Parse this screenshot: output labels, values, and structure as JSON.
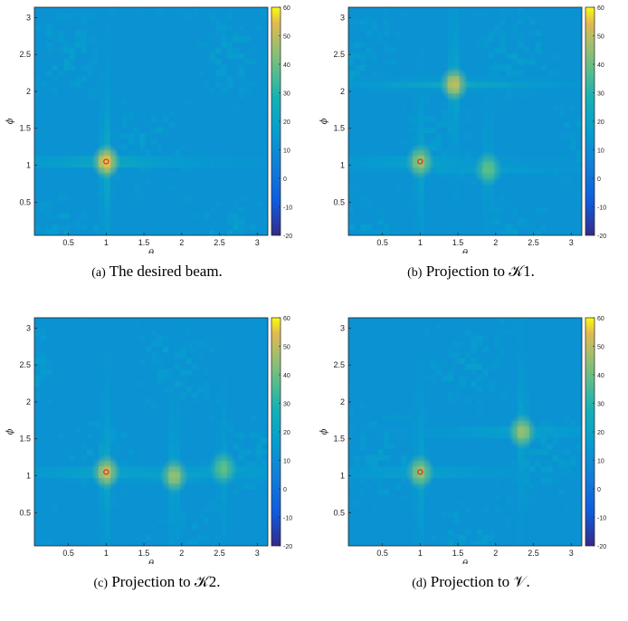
{
  "chart_data": [
    {
      "id": "a",
      "type": "heatmap",
      "caption_label": "(a)",
      "caption_text": "The desired beam.",
      "xlabel": "θ",
      "ylabel": "ϕ",
      "xlim": [
        0.05,
        3.14
      ],
      "ylim": [
        0.05,
        3.14
      ],
      "xticks": [
        0.5,
        1,
        1.5,
        2,
        2.5,
        3
      ],
      "xtick_labels": [
        "0.5",
        "1",
        "1.5",
        "2",
        "2.5",
        "3"
      ],
      "yticks": [
        0.5,
        1,
        1.5,
        2,
        2.5,
        3
      ],
      "ytick_labels": [
        "0.5",
        "1",
        "1.5",
        "2",
        "2.5",
        "3"
      ],
      "colorbar": {
        "min": -20,
        "max": 60,
        "ticks": [
          -20,
          -10,
          0,
          10,
          20,
          30,
          40,
          50,
          60
        ],
        "tick_labels": [
          "-20",
          "-10",
          "0",
          "10",
          "20",
          "30",
          "40",
          "50",
          "60"
        ]
      },
      "marker": {
        "theta": 1.0,
        "phi": 1.05
      },
      "peaks": [
        {
          "theta": 1.0,
          "phi": 1.05,
          "value": 55
        }
      ]
    },
    {
      "id": "b",
      "type": "heatmap",
      "caption_label": "(b)",
      "caption_text": "Projection to 𝒦1.",
      "xlabel": "θ",
      "ylabel": "ϕ",
      "xlim": [
        0.05,
        3.14
      ],
      "ylim": [
        0.05,
        3.14
      ],
      "xticks": [
        0.5,
        1,
        1.5,
        2,
        2.5,
        3
      ],
      "xtick_labels": [
        "0.5",
        "1",
        "1.5",
        "2",
        "2.5",
        "3"
      ],
      "yticks": [
        0.5,
        1,
        1.5,
        2,
        2.5,
        3
      ],
      "ytick_labels": [
        "0.5",
        "1",
        "1.5",
        "2",
        "2.5",
        "3"
      ],
      "colorbar": {
        "min": -20,
        "max": 60,
        "ticks": [
          -20,
          -10,
          0,
          10,
          20,
          30,
          40,
          50,
          60
        ],
        "tick_labels": [
          "-20",
          "-10",
          "0",
          "10",
          "20",
          "30",
          "40",
          "50",
          "60"
        ]
      },
      "marker": {
        "theta": 1.0,
        "phi": 1.05
      },
      "peaks": [
        {
          "theta": 1.0,
          "phi": 1.05,
          "value": 45
        },
        {
          "theta": 1.45,
          "phi": 2.1,
          "value": 50
        },
        {
          "theta": 1.9,
          "phi": 0.95,
          "value": 38
        }
      ]
    },
    {
      "id": "c",
      "type": "heatmap",
      "caption_label": "(c)",
      "caption_text": "Projection to 𝒦2.",
      "xlabel": "θ",
      "ylabel": "ϕ",
      "xlim": [
        0.05,
        3.14
      ],
      "ylim": [
        0.05,
        3.14
      ],
      "xticks": [
        0.5,
        1,
        1.5,
        2,
        2.5,
        3
      ],
      "xtick_labels": [
        "0.5",
        "1",
        "1.5",
        "2",
        "2.5",
        "3"
      ],
      "yticks": [
        0.5,
        1,
        1.5,
        2,
        2.5,
        3
      ],
      "ytick_labels": [
        "0.5",
        "1",
        "1.5",
        "2",
        "2.5",
        "3"
      ],
      "colorbar": {
        "min": -20,
        "max": 60,
        "ticks": [
          -20,
          -10,
          0,
          10,
          20,
          30,
          40,
          50,
          60
        ],
        "tick_labels": [
          "-20",
          "-10",
          "0",
          "10",
          "20",
          "30",
          "40",
          "50",
          "60"
        ]
      },
      "marker": {
        "theta": 1.0,
        "phi": 1.05
      },
      "peaks": [
        {
          "theta": 1.0,
          "phi": 1.05,
          "value": 50
        },
        {
          "theta": 1.9,
          "phi": 1.0,
          "value": 45
        },
        {
          "theta": 2.55,
          "phi": 1.1,
          "value": 38
        }
      ]
    },
    {
      "id": "d",
      "type": "heatmap",
      "caption_label": "(d)",
      "caption_text": "Projection to 𝒱.",
      "xlabel": "θ",
      "ylabel": "ϕ",
      "xlim": [
        0.05,
        3.14
      ],
      "ylim": [
        0.05,
        3.14
      ],
      "xticks": [
        0.5,
        1,
        1.5,
        2,
        2.5,
        3
      ],
      "xtick_labels": [
        "0.5",
        "1",
        "1.5",
        "2",
        "2.5",
        "3"
      ],
      "yticks": [
        0.5,
        1,
        1.5,
        2,
        2.5,
        3
      ],
      "ytick_labels": [
        "0.5",
        "1",
        "1.5",
        "2",
        "2.5",
        "3"
      ],
      "colorbar": {
        "min": -20,
        "max": 60,
        "ticks": [
          -20,
          -10,
          0,
          10,
          20,
          30,
          40,
          50,
          60
        ],
        "tick_labels": [
          "-20",
          "-10",
          "0",
          "10",
          "20",
          "30",
          "40",
          "50",
          "60"
        ]
      },
      "marker": {
        "theta": 1.0,
        "phi": 1.05
      },
      "peaks": [
        {
          "theta": 1.0,
          "phi": 1.05,
          "value": 45
        },
        {
          "theta": 2.35,
          "phi": 1.6,
          "value": 45
        }
      ]
    }
  ]
}
